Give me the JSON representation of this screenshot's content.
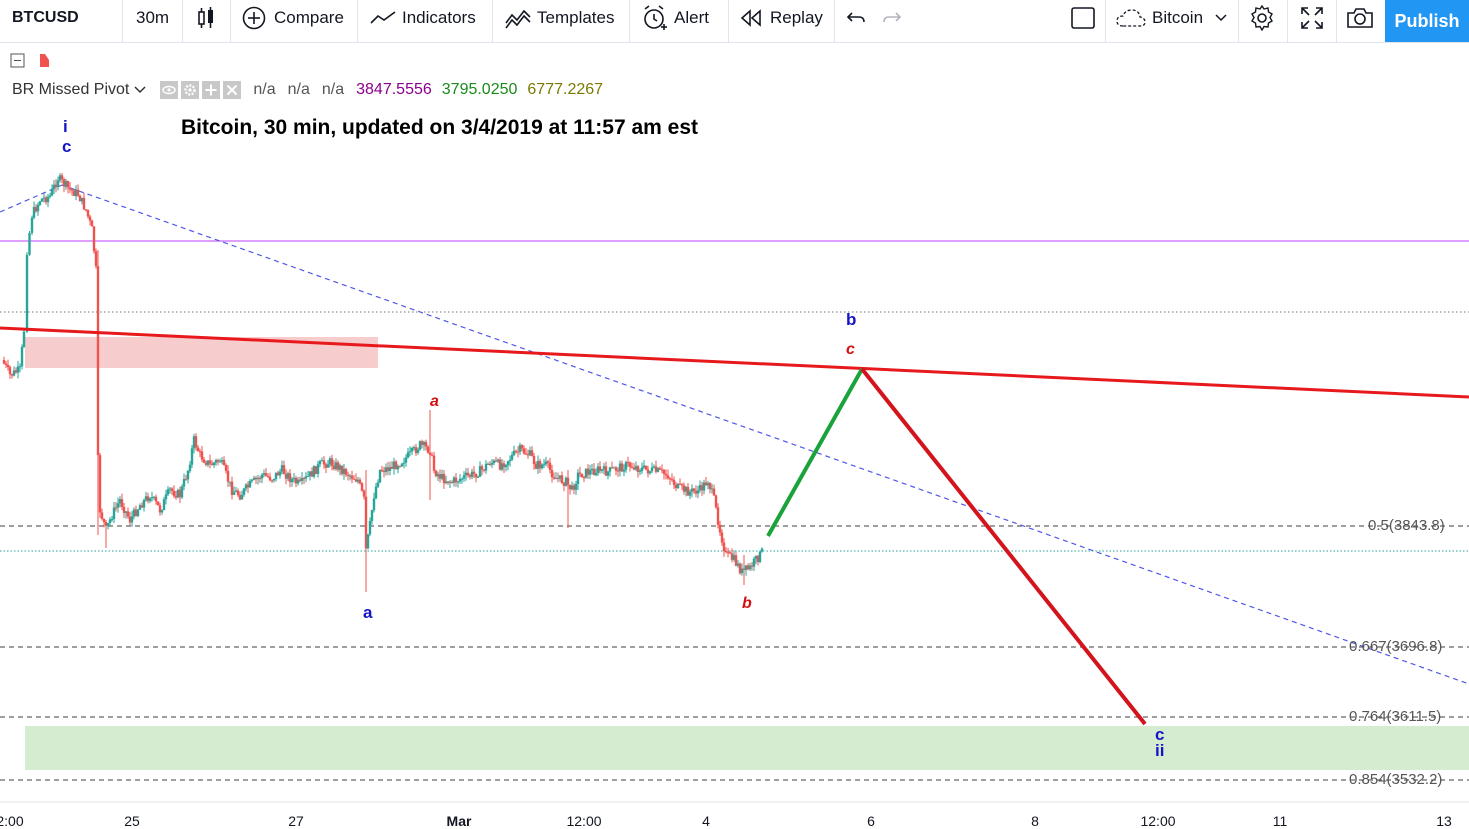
{
  "toolbar": {
    "symbol": "BTCUSD",
    "interval": "30m",
    "compare": "Compare",
    "indicators": "Indicators",
    "templates": "Templates",
    "alert": "Alert",
    "replay": "Replay",
    "layout_name": "Bitcoin",
    "publish": "Publish"
  },
  "indicator": {
    "name": "BR Missed Pivot",
    "values": [
      "n/a",
      "n/a",
      "n/a",
      "3847.5556",
      "3795.0250",
      "6777.2267"
    ],
    "value_colors": [
      "#555555",
      "#555555",
      "#555555",
      "#8b008b",
      "#1a8a1a",
      "#7a7a00"
    ]
  },
  "annotation_title": "Bitcoin, 30 min, updated on 3/4/2019 at 11:57 am est",
  "wave_labels": {
    "i_top": "i",
    "c_top": "c",
    "a_red": "a",
    "a_blue": "a",
    "b_red": "b",
    "b_blue": "b",
    "c_red": "c",
    "c_bottom": "c",
    "ii_bottom": "ii"
  },
  "fib_levels": [
    {
      "label": "0.5(3843.8)"
    },
    {
      "label": "0.667(3696.8)"
    },
    {
      "label": "0.764(3611.5)"
    },
    {
      "label": "0.854(3532.2)"
    }
  ],
  "x_axis": [
    "2:00",
    "25",
    "27",
    "Mar",
    "12:00",
    "4",
    "6",
    "8",
    "12:00",
    "11",
    "13"
  ],
  "colors": {
    "up_candle": "#26a69a",
    "down_candle": "#ef5350",
    "resistance": "#e8191c",
    "projection_up": "#1aa33a",
    "projection_down": "#d4141c",
    "pivot_line": "#cc66ff",
    "wave_blue": "#1515c8",
    "wave_red": "#d41010"
  }
}
